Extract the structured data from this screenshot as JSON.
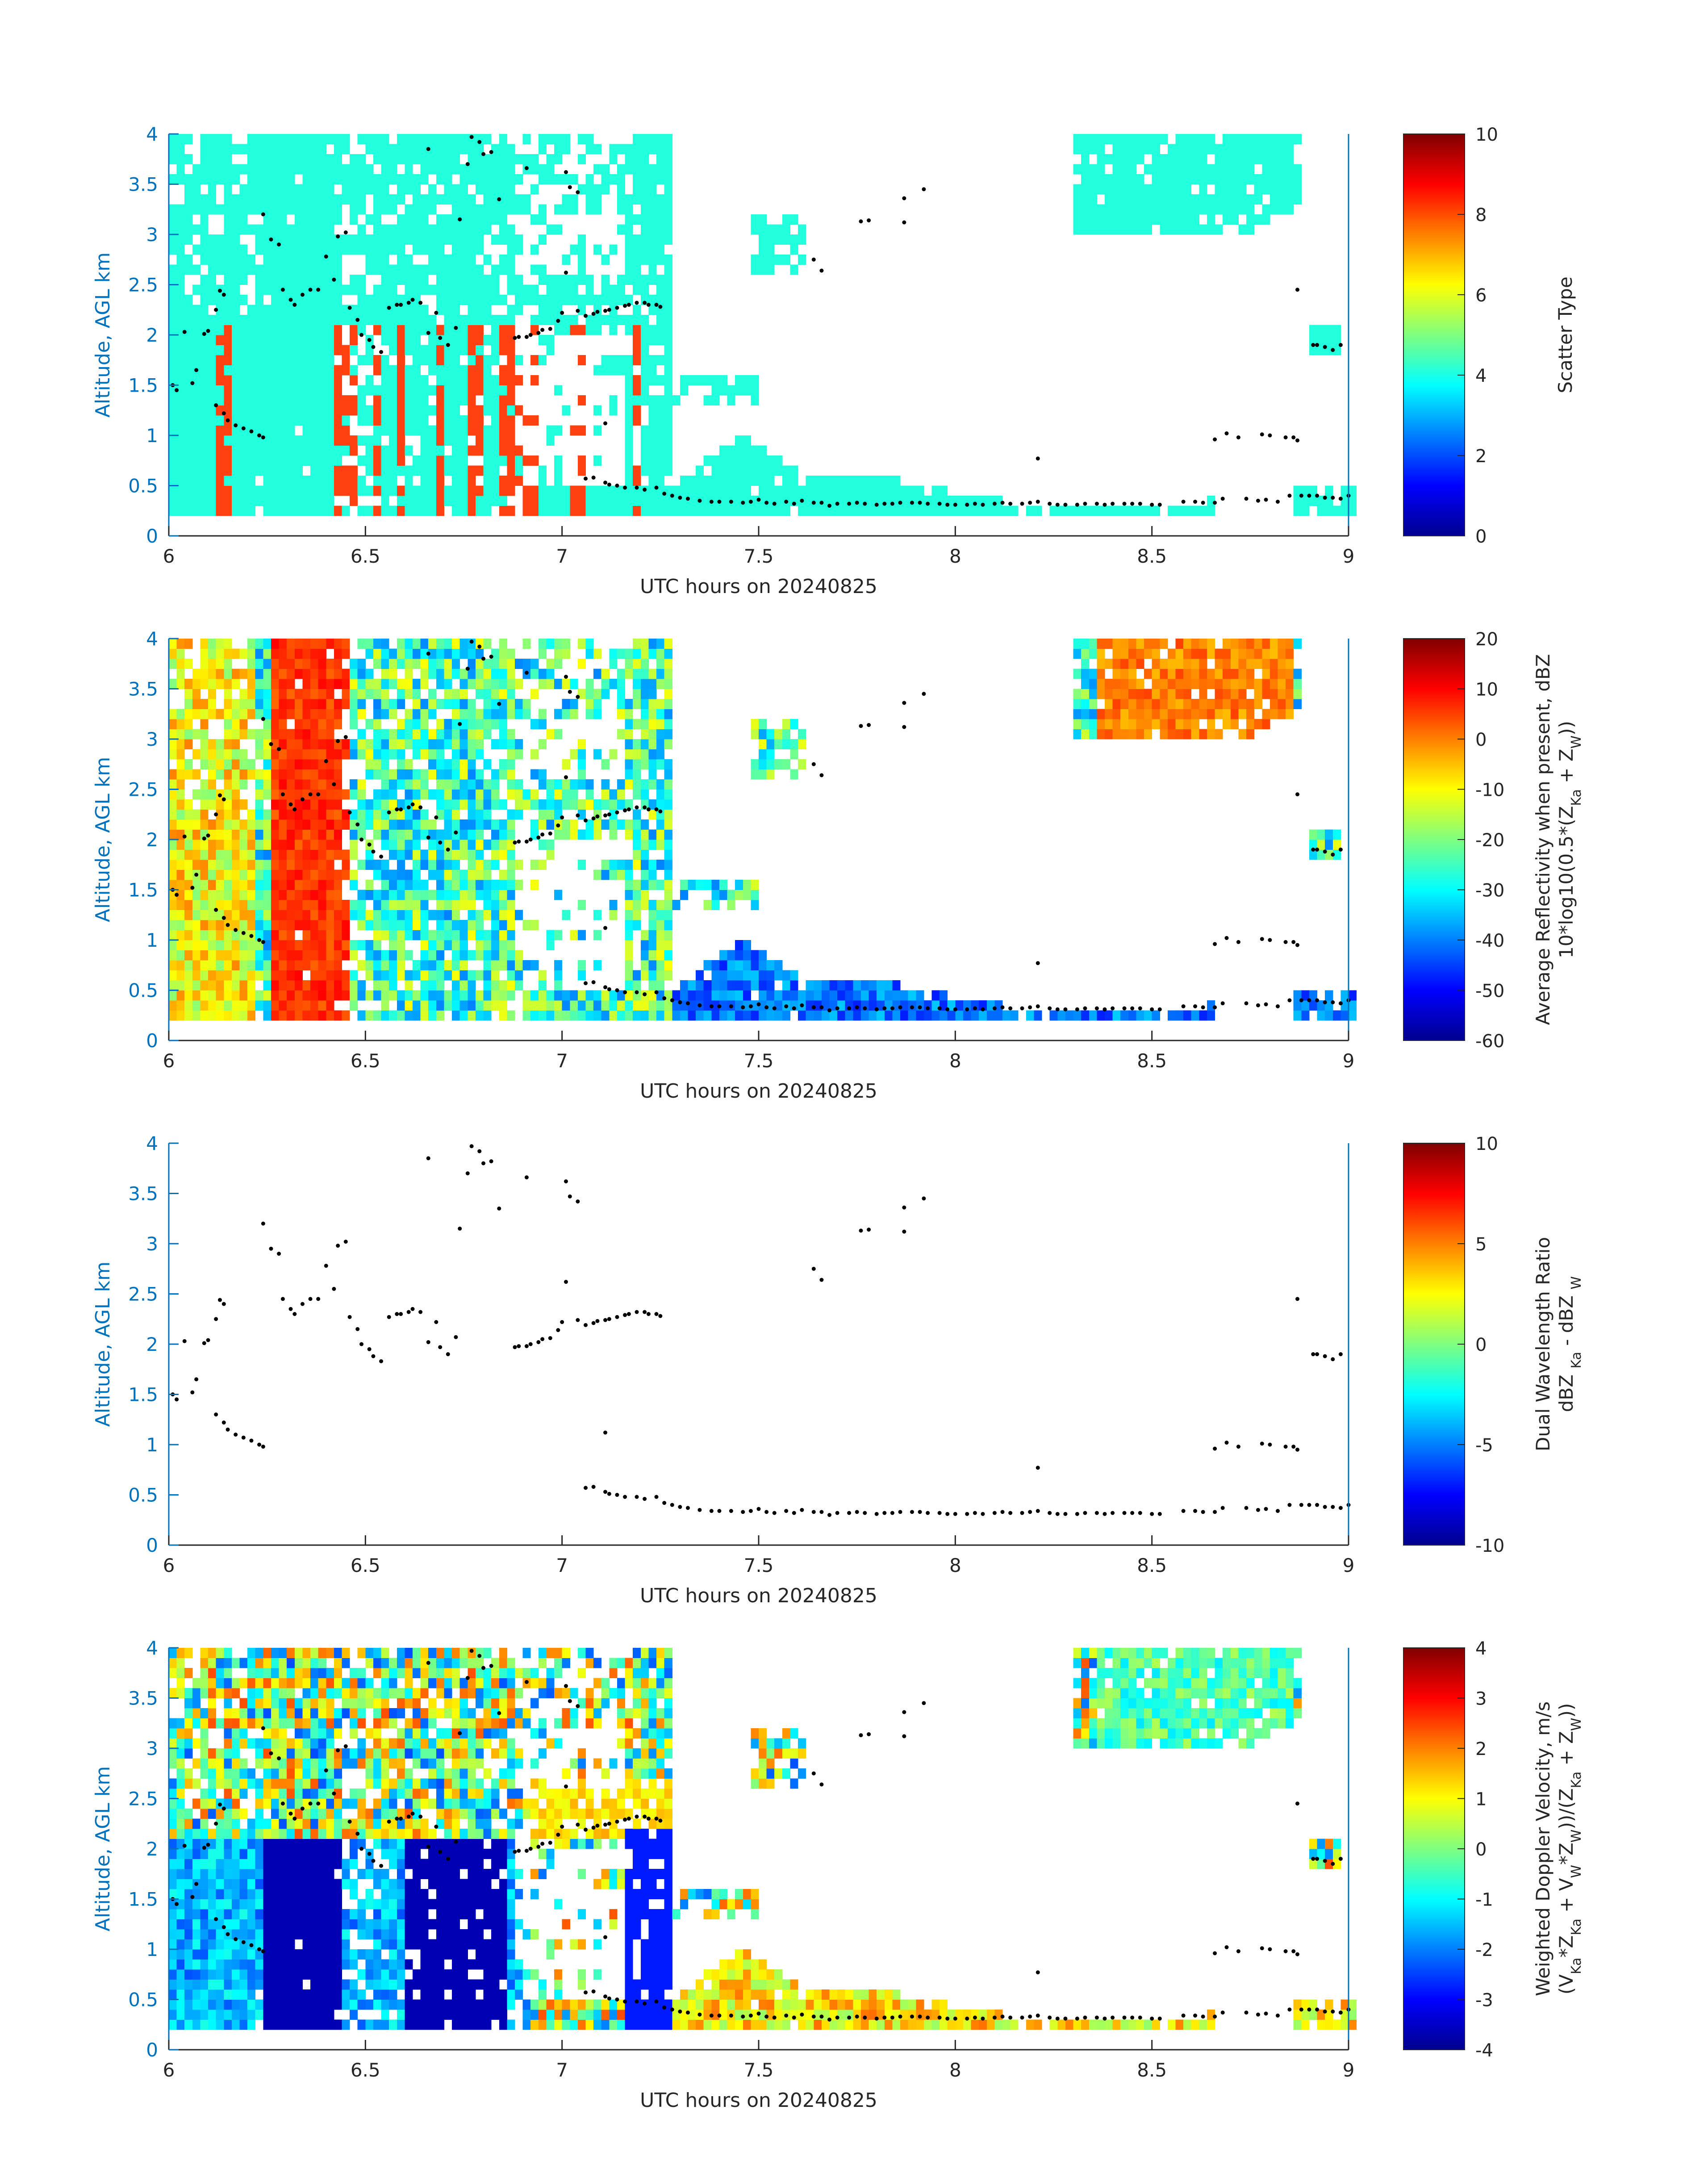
{
  "figure": {
    "xlabel": "UTC hours on 20240825",
    "ylabel": "Altitude, AGL km",
    "xticks": [
      "6",
      "6.5",
      "7",
      "7.5",
      "8",
      "8.5",
      "9"
    ],
    "yticks": [
      "0",
      "0.5",
      "1",
      "1.5",
      "2",
      "2.5",
      "3",
      "3.5",
      "4"
    ]
  },
  "colors": {
    "axis": "#0072BD",
    "background": "#ffffff",
    "marker": "#000000",
    "scatter_cloud": "#22FFDD",
    "scatter_precip": "#FF4010"
  },
  "chart_data": [
    {
      "type": "heatmap",
      "name": "scatter-type",
      "xlabel": "UTC hours on 20240825",
      "ylabel": "Altitude, AGL km",
      "xlim": [
        6,
        9
      ],
      "ylim": [
        0,
        4
      ],
      "clim": [
        0,
        10
      ],
      "colormap": "jet",
      "colorbar_label": [
        "Scatter Type"
      ],
      "colorbar_ticks": [
        "0",
        "2",
        "4",
        "6",
        "8",
        "10"
      ]
    },
    {
      "type": "heatmap",
      "name": "reflectivity",
      "xlabel": "UTC hours on 20240825",
      "ylabel": "Altitude, AGL km",
      "xlim": [
        6,
        9
      ],
      "ylim": [
        0,
        4
      ],
      "clim": [
        -60,
        20
      ],
      "colormap": "jet",
      "colorbar_label": [
        "Average Reflectivity when present, dBZ",
        "10*log10(0.5*(Z",
        "Ka",
        " + Z",
        "W",
        "))"
      ],
      "colorbar_ticks": [
        "-60",
        "-50",
        "-40",
        "-30",
        "-20",
        "-10",
        "0",
        "10",
        "20"
      ]
    },
    {
      "type": "heatmap",
      "name": "dual-wavelength-ratio",
      "xlabel": "UTC hours on 20240825",
      "ylabel": "Altitude, AGL km",
      "xlim": [
        6,
        9
      ],
      "ylim": [
        0,
        4
      ],
      "clim": [
        -10,
        10
      ],
      "colormap": "jet",
      "colorbar_label": [
        "Dual Wavelength Ratio",
        "dBZ ",
        "Ka",
        " - dBZ ",
        "W"
      ],
      "colorbar_ticks": [
        "-10",
        "-5",
        "0",
        "5",
        "10"
      ]
    },
    {
      "type": "heatmap",
      "name": "doppler-velocity",
      "xlabel": "UTC hours on 20240825",
      "ylabel": "Altitude, AGL km",
      "xlim": [
        6,
        9
      ],
      "ylim": [
        0,
        4
      ],
      "clim": [
        -4,
        4
      ],
      "colormap": "jet",
      "colorbar_label": [
        "Weighted Doppler Velocity, m/s",
        "(V",
        "Ka",
        "*Z",
        "Ka",
        " + V",
        "W",
        "*Z",
        "W",
        "))/(Z",
        "Ka",
        " + Z",
        "W",
        "))"
      ],
      "colorbar_ticks": [
        "-4",
        "-3",
        "-2",
        "-1",
        "0",
        "1",
        "2",
        "3",
        "4"
      ]
    }
  ],
  "cloud_base_points": [
    [
      6.01,
      1.5
    ],
    [
      6.02,
      1.45
    ],
    [
      6.04,
      2.03
    ],
    [
      6.06,
      1.52
    ],
    [
      6.07,
      1.65
    ],
    [
      6.09,
      2.01
    ],
    [
      6.1,
      2.04
    ],
    [
      6.12,
      2.25
    ],
    [
      6.13,
      2.44
    ],
    [
      6.14,
      2.4
    ],
    [
      6.12,
      1.3
    ],
    [
      6.14,
      1.22
    ],
    [
      6.15,
      1.15
    ],
    [
      6.17,
      1.1
    ],
    [
      6.19,
      1.07
    ],
    [
      6.21,
      1.04
    ],
    [
      6.23,
      1.0
    ],
    [
      6.24,
      0.98
    ],
    [
      6.24,
      3.2
    ],
    [
      6.26,
      2.95
    ],
    [
      6.28,
      2.9
    ],
    [
      6.29,
      2.45
    ],
    [
      6.31,
      2.35
    ],
    [
      6.32,
      2.3
    ],
    [
      6.34,
      2.4
    ],
    [
      6.36,
      2.45
    ],
    [
      6.38,
      2.45
    ],
    [
      6.4,
      2.78
    ],
    [
      6.42,
      2.55
    ],
    [
      6.43,
      2.98
    ],
    [
      6.45,
      3.02
    ],
    [
      6.46,
      2.27
    ],
    [
      6.48,
      2.15
    ],
    [
      6.49,
      2.0
    ],
    [
      6.51,
      1.95
    ],
    [
      6.52,
      1.88
    ],
    [
      6.54,
      1.83
    ],
    [
      6.56,
      2.27
    ],
    [
      6.58,
      2.3
    ],
    [
      6.59,
      2.3
    ],
    [
      6.61,
      2.32
    ],
    [
      6.62,
      2.35
    ],
    [
      6.64,
      2.32
    ],
    [
      6.66,
      3.85
    ],
    [
      6.66,
      2.02
    ],
    [
      6.68,
      2.22
    ],
    [
      6.69,
      1.97
    ],
    [
      6.71,
      1.9
    ],
    [
      6.73,
      2.07
    ],
    [
      6.74,
      3.15
    ],
    [
      6.76,
      3.7
    ],
    [
      6.77,
      3.97
    ],
    [
      6.79,
      3.92
    ],
    [
      6.8,
      3.8
    ],
    [
      6.82,
      3.82
    ],
    [
      6.84,
      3.35
    ],
    [
      6.88,
      1.97
    ],
    [
      6.89,
      1.98
    ],
    [
      6.91,
      3.66
    ],
    [
      6.91,
      1.98
    ],
    [
      6.92,
      2.0
    ],
    [
      6.94,
      2.02
    ],
    [
      6.95,
      2.05
    ],
    [
      6.97,
      2.06
    ],
    [
      6.99,
      2.14
    ],
    [
      7.0,
      2.22
    ],
    [
      7.01,
      3.62
    ],
    [
      7.01,
      2.62
    ],
    [
      7.02,
      3.47
    ],
    [
      7.04,
      3.42
    ],
    [
      7.04,
      2.24
    ],
    [
      7.06,
      2.19
    ],
    [
      7.08,
      2.21
    ],
    [
      7.09,
      2.23
    ],
    [
      7.11,
      2.24
    ],
    [
      7.12,
      2.25
    ],
    [
      7.14,
      2.27
    ],
    [
      7.16,
      2.29
    ],
    [
      7.17,
      2.3
    ],
    [
      7.19,
      2.32
    ],
    [
      7.21,
      2.32
    ],
    [
      7.22,
      2.3
    ],
    [
      7.24,
      2.3
    ],
    [
      7.25,
      2.28
    ],
    [
      7.11,
      1.12
    ],
    [
      7.06,
      0.57
    ],
    [
      7.08,
      0.58
    ],
    [
      7.11,
      0.53
    ],
    [
      7.12,
      0.51
    ],
    [
      7.14,
      0.5
    ],
    [
      7.16,
      0.48
    ],
    [
      7.19,
      0.48
    ],
    [
      7.21,
      0.46
    ],
    [
      7.24,
      0.48
    ],
    [
      7.26,
      0.42
    ],
    [
      7.28,
      0.4
    ],
    [
      7.3,
      0.38
    ],
    [
      7.32,
      0.37
    ],
    [
      7.35,
      0.35
    ],
    [
      7.38,
      0.34
    ],
    [
      7.4,
      0.34
    ],
    [
      7.43,
      0.34
    ],
    [
      7.46,
      0.33
    ],
    [
      7.48,
      0.34
    ],
    [
      7.5,
      0.36
    ],
    [
      7.52,
      0.33
    ],
    [
      7.54,
      0.32
    ],
    [
      7.57,
      0.34
    ],
    [
      7.59,
      0.32
    ],
    [
      7.61,
      0.35
    ],
    [
      7.64,
      0.33
    ],
    [
      7.66,
      0.33
    ],
    [
      7.68,
      0.3
    ],
    [
      7.7,
      0.32
    ],
    [
      7.73,
      0.32
    ],
    [
      7.75,
      0.33
    ],
    [
      7.77,
      0.32
    ],
    [
      7.8,
      0.31
    ],
    [
      7.82,
      0.32
    ],
    [
      7.84,
      0.32
    ],
    [
      7.86,
      0.33
    ],
    [
      7.89,
      0.33
    ],
    [
      7.91,
      0.33
    ],
    [
      7.93,
      0.32
    ],
    [
      7.96,
      0.32
    ],
    [
      7.98,
      0.31
    ],
    [
      8.0,
      0.31
    ],
    [
      8.03,
      0.31
    ],
    [
      8.05,
      0.32
    ],
    [
      8.07,
      0.31
    ],
    [
      8.1,
      0.32
    ],
    [
      8.12,
      0.33
    ],
    [
      8.14,
      0.32
    ],
    [
      8.17,
      0.32
    ],
    [
      8.19,
      0.33
    ],
    [
      8.21,
      0.34
    ],
    [
      8.24,
      0.32
    ],
    [
      8.26,
      0.31
    ],
    [
      8.28,
      0.31
    ],
    [
      8.31,
      0.31
    ],
    [
      8.33,
      0.32
    ],
    [
      8.36,
      0.32
    ],
    [
      8.38,
      0.31
    ],
    [
      8.4,
      0.32
    ],
    [
      8.43,
      0.32
    ],
    [
      8.45,
      0.32
    ],
    [
      8.47,
      0.32
    ],
    [
      8.5,
      0.31
    ],
    [
      8.52,
      0.31
    ],
    [
      7.64,
      2.75
    ],
    [
      7.66,
      2.64
    ],
    [
      7.76,
      3.13
    ],
    [
      7.78,
      3.14
    ],
    [
      7.87,
      3.12
    ],
    [
      7.87,
      3.36
    ],
    [
      7.92,
      3.45
    ],
    [
      8.21,
      0.77
    ],
    [
      8.58,
      0.34
    ],
    [
      8.61,
      0.34
    ],
    [
      8.63,
      0.33
    ],
    [
      8.66,
      0.33
    ],
    [
      8.68,
      0.37
    ],
    [
      8.66,
      0.96
    ],
    [
      8.69,
      1.02
    ],
    [
      8.72,
      0.98
    ],
    [
      8.74,
      0.37
    ],
    [
      8.77,
      0.35
    ],
    [
      8.79,
      0.36
    ],
    [
      8.82,
      0.34
    ],
    [
      8.78,
      1.01
    ],
    [
      8.8,
      1.0
    ],
    [
      8.84,
      0.98
    ],
    [
      8.86,
      0.98
    ],
    [
      8.87,
      0.95
    ],
    [
      8.87,
      2.45
    ],
    [
      8.85,
      0.4
    ],
    [
      8.88,
      0.4
    ],
    [
      8.9,
      0.4
    ],
    [
      8.92,
      0.4
    ],
    [
      8.94,
      0.38
    ],
    [
      8.96,
      0.38
    ],
    [
      8.98,
      0.37
    ],
    [
      9.0,
      0.4
    ],
    [
      8.91,
      1.9
    ],
    [
      8.92,
      1.9
    ],
    [
      8.94,
      1.88
    ],
    [
      8.96,
      1.85
    ],
    [
      8.98,
      1.9
    ]
  ]
}
